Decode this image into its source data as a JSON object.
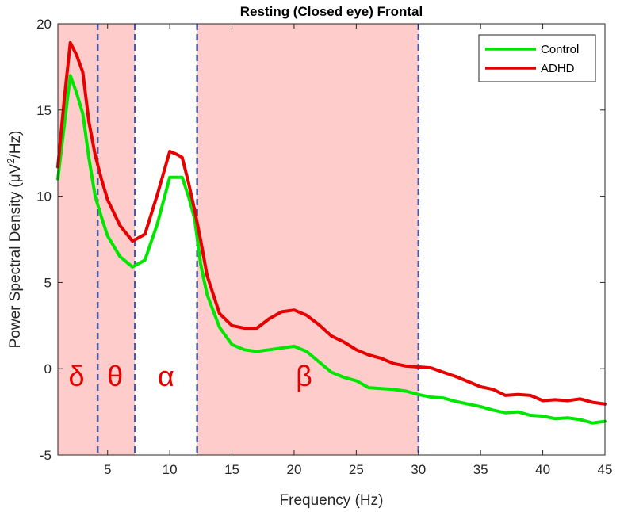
{
  "chart_data": {
    "type": "line",
    "title": "Resting (Closed eye) Frontal",
    "xlabel": "Frequency (Hz)",
    "ylabel_main": "Power Spectral Density (μV",
    "ylabel_sup": "2",
    "ylabel_end": "/Hz)",
    "xlim": [
      1,
      45
    ],
    "ylim": [
      -5,
      20
    ],
    "xticks": [
      5,
      10,
      15,
      20,
      25,
      30,
      35,
      40,
      45
    ],
    "yticks": [
      -5,
      0,
      5,
      10,
      15,
      20
    ],
    "grid": false,
    "legend_position": "top-right",
    "bands": [
      {
        "label": "δ",
        "from": 1,
        "to": 4.2,
        "label_x": 2.5,
        "shaded": true
      },
      {
        "label": "θ",
        "from": 4.2,
        "to": 7.2,
        "label_x": 5.6,
        "shaded": true
      },
      {
        "label": "α",
        "from": 7.2,
        "to": 12.2,
        "label_x": 9.7,
        "shaded": false
      },
      {
        "label": "β",
        "from": 12.2,
        "to": 30,
        "label_x": 20.8,
        "shaded": true
      }
    ],
    "band_label_y": -1,
    "boundaries": [
      4.2,
      7.2,
      12.2,
      30
    ],
    "band_color": "#ffcccc",
    "boundary_color": "#4a5aa8",
    "series": [
      {
        "name": "Control",
        "color": "#00e600",
        "x": [
          1,
          1.5,
          2,
          2.5,
          3,
          3.5,
          4,
          4.5,
          5,
          6,
          7,
          8,
          9,
          10,
          10.5,
          11,
          11.5,
          12,
          12.5,
          13,
          14,
          15,
          16,
          17,
          18,
          19,
          20,
          21,
          22,
          23,
          24,
          25,
          26,
          27,
          28,
          29,
          30,
          31,
          32,
          33,
          34,
          35,
          36,
          37,
          38,
          39,
          40,
          41,
          42,
          43,
          44,
          45
        ],
        "values": [
          11,
          14,
          17,
          16,
          14.8,
          12.2,
          10,
          8.8,
          7.7,
          6.5,
          5.9,
          6.3,
          8.4,
          11.1,
          11.1,
          11.1,
          10,
          8.7,
          6,
          4.3,
          2.4,
          1.4,
          1.1,
          1.0,
          1.1,
          1.2,
          1.3,
          1.0,
          0.4,
          -0.2,
          -0.5,
          -0.7,
          -1.1,
          -1.15,
          -1.2,
          -1.3,
          -1.5,
          -1.65,
          -1.7,
          -1.9,
          -2.05,
          -2.2,
          -2.4,
          -2.55,
          -2.5,
          -2.7,
          -2.75,
          -2.9,
          -2.85,
          -2.95,
          -3.15,
          -3.05
        ]
      },
      {
        "name": "ADHD",
        "color": "#e60000",
        "x": [
          1,
          1.5,
          2,
          2.5,
          3,
          3.5,
          4,
          4.5,
          5,
          6,
          7,
          8,
          9,
          10,
          10.5,
          11,
          11.5,
          12,
          12.5,
          13,
          14,
          15,
          16,
          17,
          18,
          19,
          20,
          21,
          22,
          23,
          24,
          25,
          26,
          27,
          28,
          29,
          30,
          31,
          32,
          33,
          34,
          35,
          36,
          37,
          38,
          39,
          40,
          41,
          42,
          43,
          44,
          45
        ],
        "values": [
          11.7,
          15.5,
          18.9,
          18.2,
          17.2,
          14.3,
          12.4,
          11,
          9.8,
          8.3,
          7.4,
          7.8,
          10.1,
          12.6,
          12.45,
          12.25,
          10.8,
          9.2,
          7.4,
          5.4,
          3.2,
          2.5,
          2.35,
          2.35,
          2.9,
          3.3,
          3.4,
          3.1,
          2.55,
          1.9,
          1.55,
          1.1,
          0.8,
          0.6,
          0.3,
          0.15,
          0.1,
          0.05,
          -0.2,
          -0.45,
          -0.75,
          -1.05,
          -1.2,
          -1.55,
          -1.5,
          -1.55,
          -1.85,
          -1.8,
          -1.85,
          -1.75,
          -1.95,
          -2.05
        ]
      }
    ]
  }
}
